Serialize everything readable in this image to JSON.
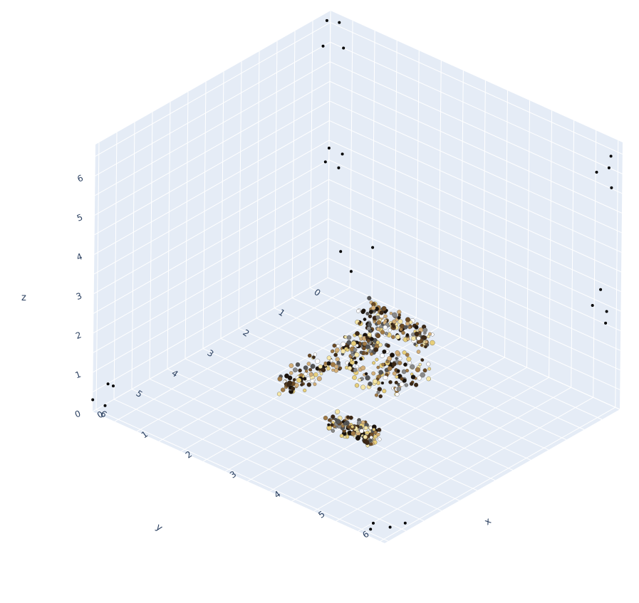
{
  "chart_data": {
    "type": "scatter3d",
    "title": "",
    "axes": {
      "x": {
        "label": "x",
        "range": [
          0,
          6.6
        ],
        "ticks": [
          "0",
          "1",
          "2",
          "3",
          "4",
          "5",
          "6"
        ]
      },
      "y": {
        "label": "y",
        "range": [
          0,
          6.6
        ],
        "ticks": [
          "0",
          "1",
          "2",
          "3",
          "4",
          "5",
          "6"
        ]
      },
      "z": {
        "label": "z",
        "range": [
          0,
          6.8
        ],
        "ticks": [
          "0",
          "1",
          "2",
          "3",
          "4",
          "5",
          "6"
        ]
      }
    },
    "grid": true,
    "background": "#e5ecf6",
    "gridcolor": "#ffffff",
    "tickcolor": "#2a3f5f",
    "colors": {
      "edge_points": "#000000",
      "cloud_palette": [
        "#1a120b",
        "#3b2714",
        "#6b4a24",
        "#a17a45",
        "#d4b07a",
        "#e8cf7a",
        "#f5e6a8",
        "#ffffff",
        "#555555",
        "#8a8a8a"
      ]
    },
    "points": {
      "isolated": [
        {
          "x": 0.2,
          "y": 0.0,
          "z": 6.6
        },
        {
          "x": 0.3,
          "y": 0.0,
          "z": 6.0
        },
        {
          "x": 0.0,
          "y": 0.1,
          "z": 6.6
        },
        {
          "x": 0.0,
          "y": 0.2,
          "z": 6.0
        },
        {
          "x": 0.0,
          "y": 0.0,
          "z": 3.3
        },
        {
          "x": 0.3,
          "y": 0.0,
          "z": 3.3
        },
        {
          "x": 0.0,
          "y": 0.1,
          "z": 3.0
        },
        {
          "x": 0.3,
          "y": 0.1,
          "z": 3.0
        },
        {
          "x": 6.5,
          "y": 0.2,
          "z": 6.5
        },
        {
          "x": 6.5,
          "y": 0.6,
          "z": 6.3
        },
        {
          "x": 6.3,
          "y": 0.0,
          "z": 6.0
        },
        {
          "x": 6.6,
          "y": 0.3,
          "z": 5.8
        },
        {
          "x": 6.3,
          "y": 0.2,
          "z": 3.0
        },
        {
          "x": 6.6,
          "y": 0.4,
          "z": 2.7
        },
        {
          "x": 6.2,
          "y": 0.3,
          "z": 2.6
        },
        {
          "x": 6.5,
          "y": 0.3,
          "z": 2.3
        },
        {
          "x": 0.1,
          "y": 6.3,
          "z": 0.6
        },
        {
          "x": 0.3,
          "y": 6.4,
          "z": 0.7
        },
        {
          "x": 0.2,
          "y": 6.5,
          "z": 0.2
        },
        {
          "x": 0.0,
          "y": 6.6,
          "z": 0.3
        },
        {
          "x": 6.4,
          "y": 6.2,
          "z": 0.1
        },
        {
          "x": 6.5,
          "y": 5.9,
          "z": 0.1
        },
        {
          "x": 6.2,
          "y": 6.5,
          "z": 0.1
        },
        {
          "x": 6.1,
          "y": 6.3,
          "z": 0.1
        },
        {
          "x": 1.4,
          "y": 1.4,
          "z": 2.1
        },
        {
          "x": 1.8,
          "y": 1.0,
          "z": 2.2
        },
        {
          "x": 1.8,
          "y": 1.6,
          "z": 1.9
        }
      ],
      "cloud_regions": [
        {
          "name": "",
          "x_range": [
            2.0,
            3.5
          ],
          "y_range": [
            1.3,
            1.7
          ],
          "z_range": [
            0.7,
            1.2
          ]
        },
        {
          "name": "",
          "x_range": [
            2.0,
            2.3
          ],
          "y_range": [
            1.3,
            4.0
          ],
          "z_range": [
            0.0,
            0.6
          ]
        },
        {
          "name": "",
          "x_range": [
            2.4,
            4.0
          ],
          "y_range": [
            2.0,
            3.2
          ],
          "z_range": [
            0.5,
            0.9
          ]
        },
        {
          "name": "",
          "x_range": [
            3.3,
            4.3
          ],
          "y_range": [
            3.8,
            4.2
          ],
          "z_range": [
            0.0,
            0.3
          ]
        }
      ]
    }
  }
}
